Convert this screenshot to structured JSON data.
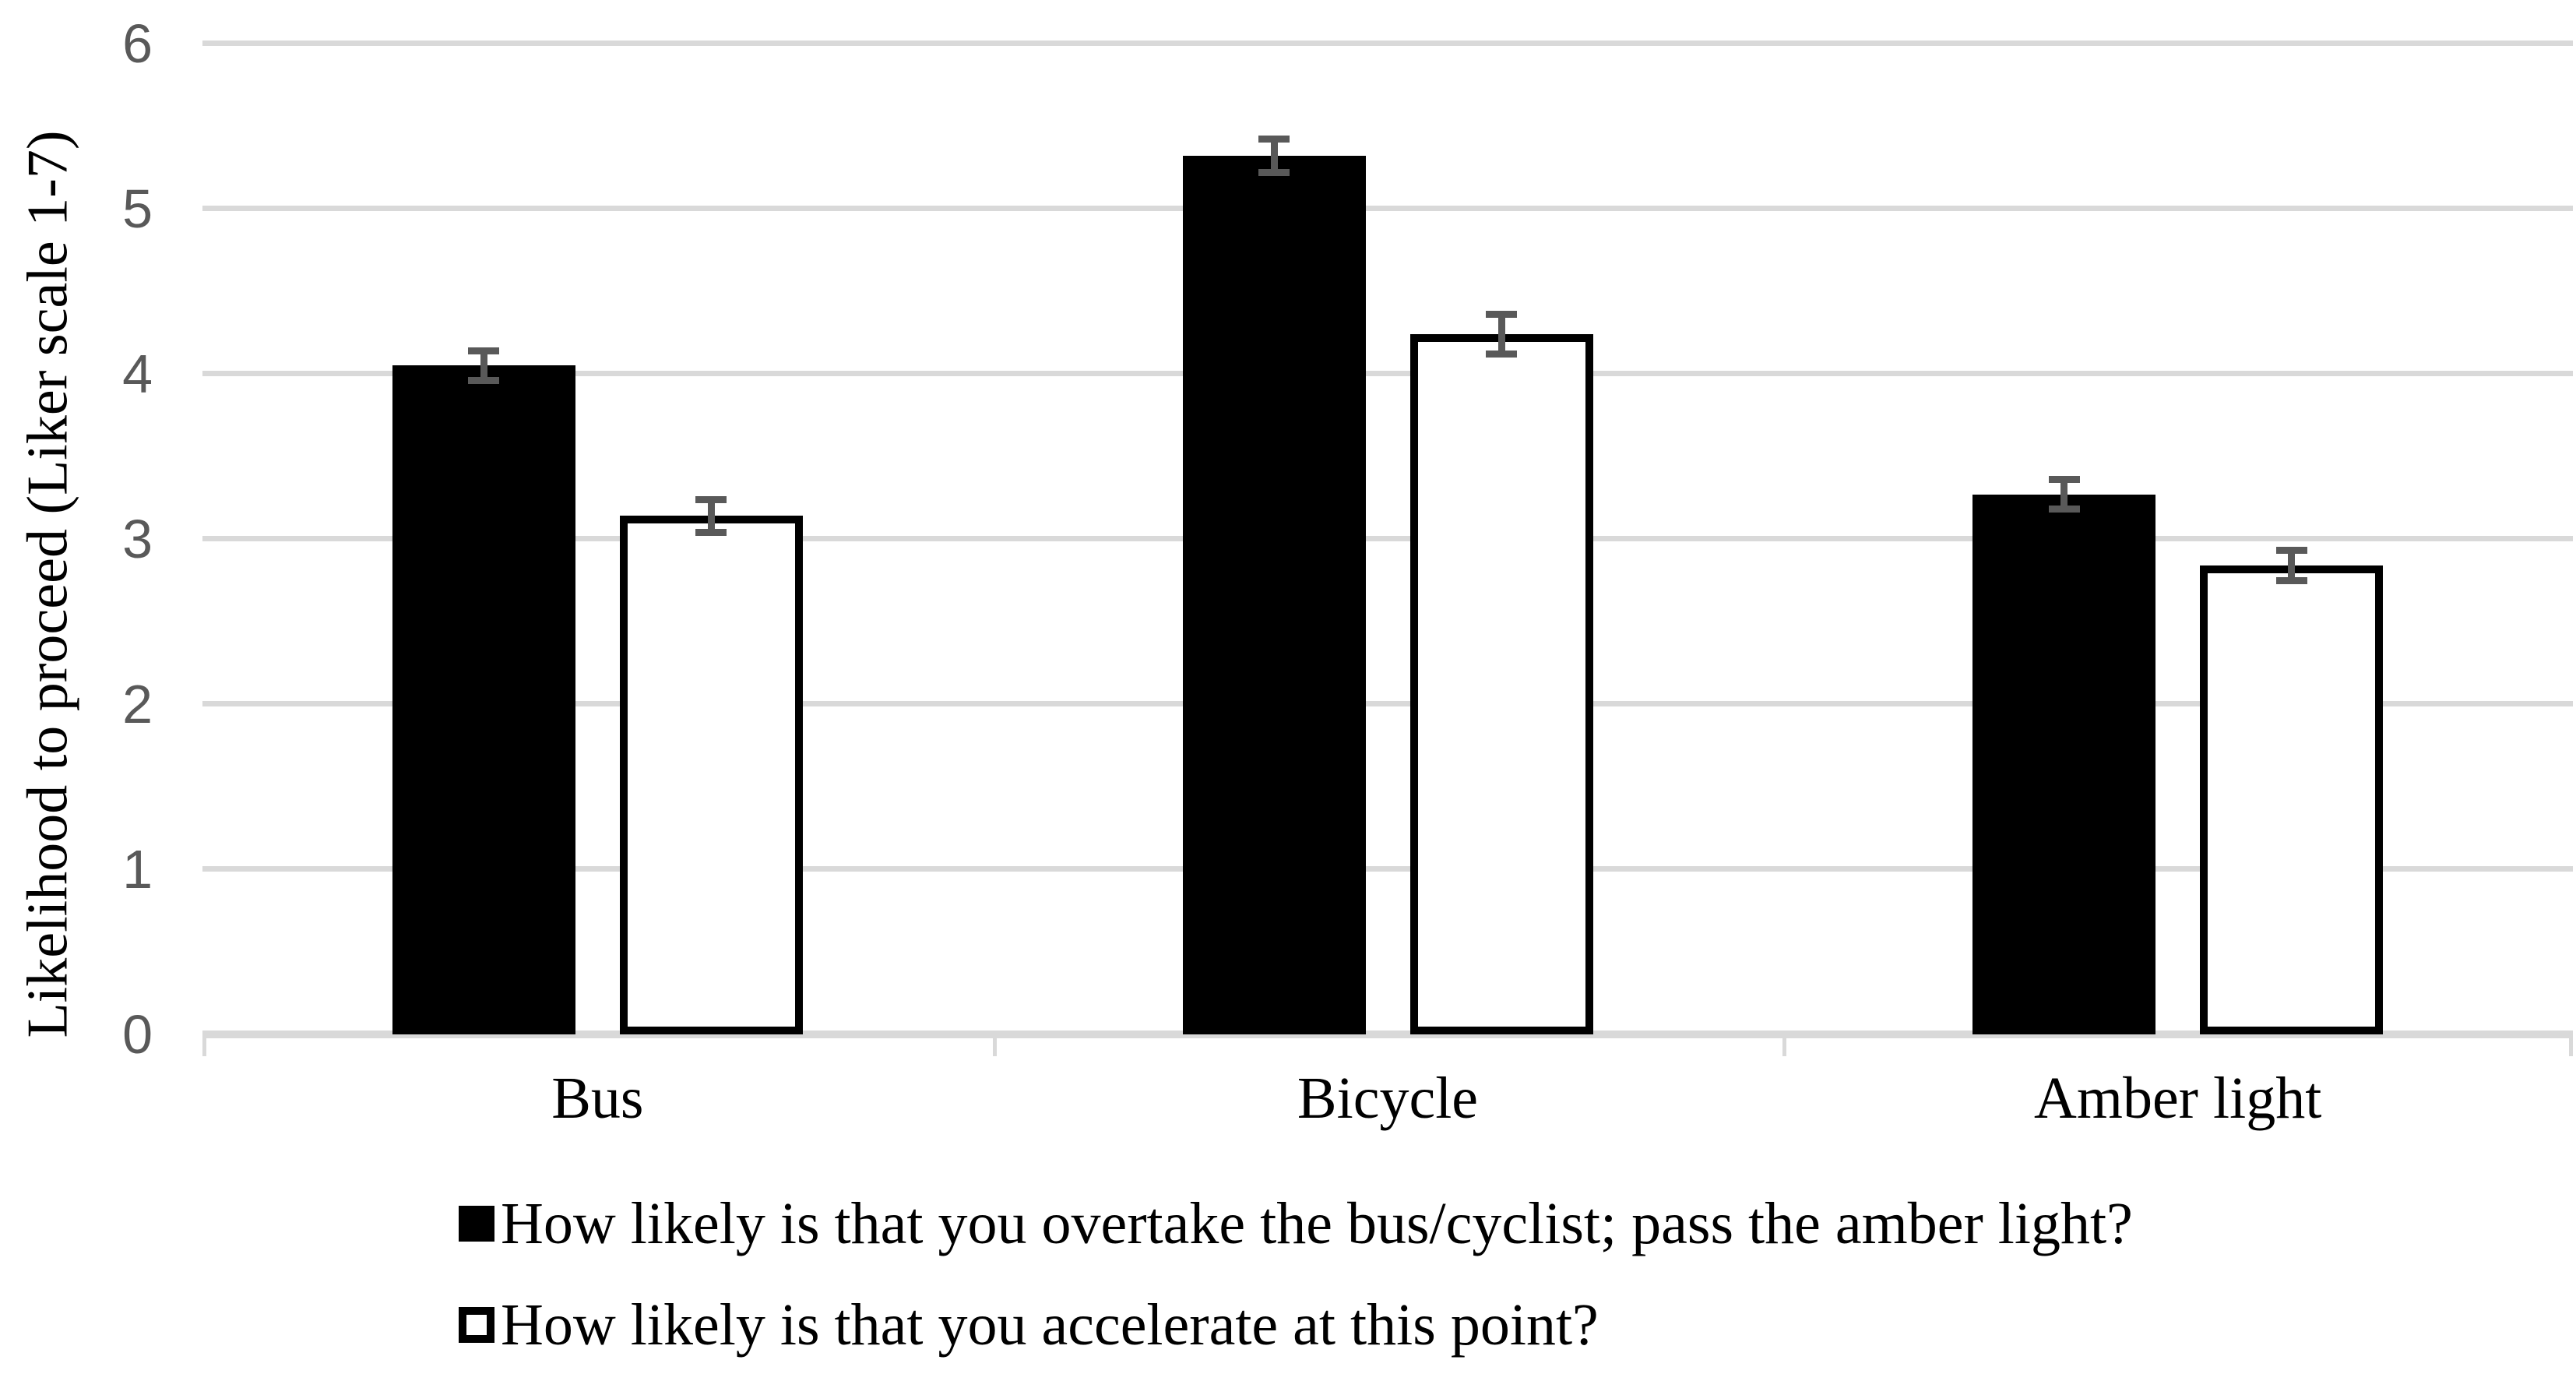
{
  "chart_data": {
    "type": "bar",
    "title": "",
    "xlabel": "",
    "ylabel": "Likelihood to proceed (Liker scale 1-7)",
    "ylim": [
      0,
      6
    ],
    "y_ticks": [
      0,
      1,
      2,
      3,
      4,
      5,
      6
    ],
    "grid": "horizontal",
    "legend_position": "bottom-left",
    "categories": [
      "Bus",
      "Bicycle",
      "Amber light"
    ],
    "series": [
      {
        "name": "How likely is that you overtake the bus/cyclist; pass the amber light?",
        "values": [
          4.05,
          5.32,
          3.27
        ],
        "errors": [
          0.09,
          0.1,
          0.09
        ],
        "marker": "filled-square",
        "fill": "#000000",
        "stroke": "#000000"
      },
      {
        "name": "How likely is that you accelerate at this point?",
        "values": [
          3.14,
          4.24,
          2.84
        ],
        "errors": [
          0.1,
          0.12,
          0.09
        ],
        "marker": "open-square",
        "fill": "#ffffff",
        "stroke": "#000000"
      }
    ],
    "colors": {
      "gridline": "#d9d9d9",
      "axis_tick_label": "#595959",
      "error_bar": "#595959",
      "background": "#ffffff"
    }
  }
}
